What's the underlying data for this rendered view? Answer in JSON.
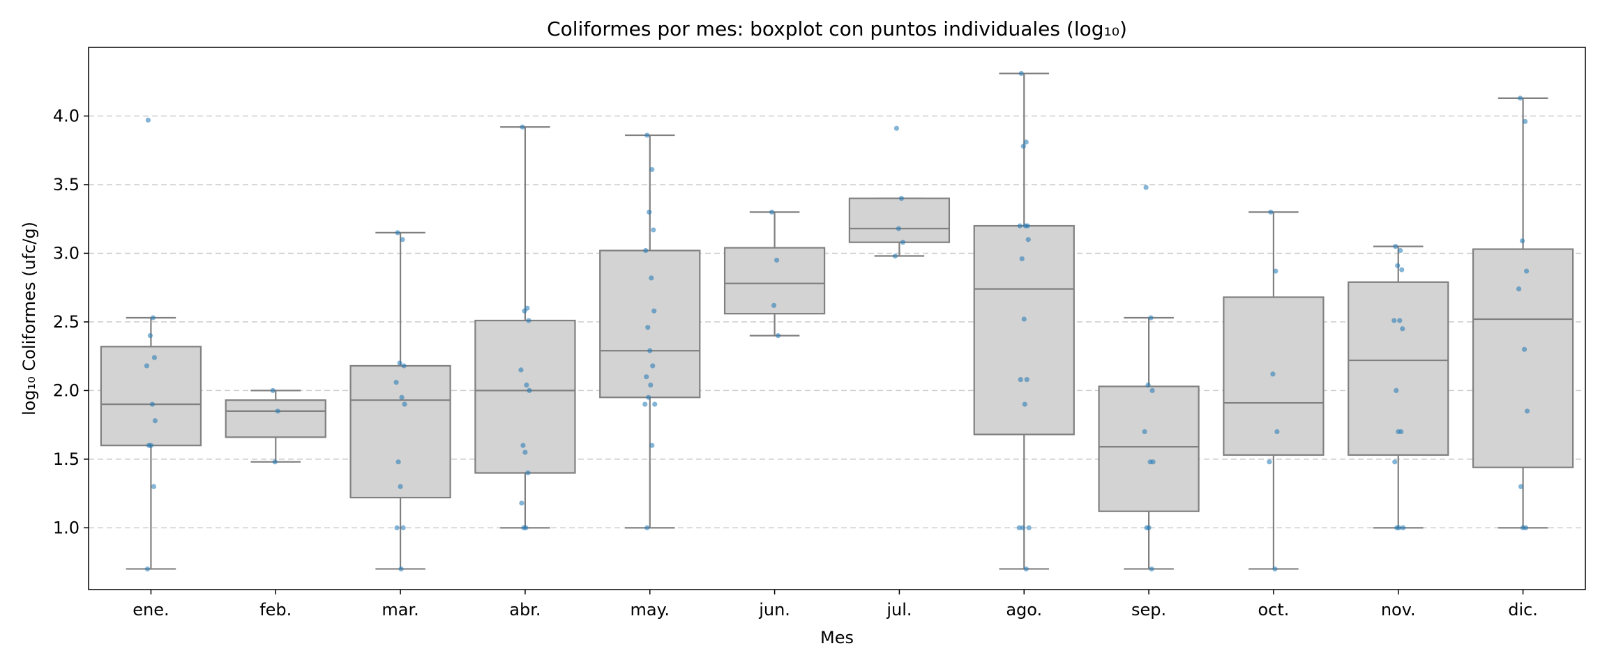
{
  "chart_data": {
    "type": "box",
    "title": "Coliformes por mes: boxplot con puntos individuales (log₁₀)",
    "xlabel": "Mes",
    "ylabel": "log₁₀ Coliformes (ufc/g)",
    "ylim": [
      0.55,
      4.5
    ],
    "yticks": [
      1.0,
      1.5,
      2.0,
      2.5,
      3.0,
      3.5,
      4.0
    ],
    "grid": "horizontal dashed",
    "colors": {
      "box_fill": "#d3d3d3",
      "box_line": "#808080",
      "points": "#1f77b4",
      "grid": "#cccccc"
    },
    "categories": [
      "ene.",
      "feb.",
      "mar.",
      "abr.",
      "may.",
      "jun.",
      "jul.",
      "ago.",
      "sep.",
      "oct.",
      "nov.",
      "dic."
    ],
    "boxes": [
      {
        "whislo": 0.7,
        "q1": 1.6,
        "med": 1.9,
        "q3": 2.32,
        "whishi": 2.53
      },
      {
        "whislo": 1.48,
        "q1": 1.66,
        "med": 1.85,
        "q3": 1.93,
        "whishi": 2.0
      },
      {
        "whislo": 0.7,
        "q1": 1.22,
        "med": 1.93,
        "q3": 2.18,
        "whishi": 3.15
      },
      {
        "whislo": 1.0,
        "q1": 1.4,
        "med": 2.0,
        "q3": 2.51,
        "whishi": 3.92
      },
      {
        "whislo": 1.0,
        "q1": 1.95,
        "med": 2.29,
        "q3": 3.02,
        "whishi": 3.86
      },
      {
        "whislo": 2.4,
        "q1": 2.56,
        "med": 2.78,
        "q3": 3.04,
        "whishi": 3.3
      },
      {
        "whislo": 2.98,
        "q1": 3.08,
        "med": 3.18,
        "q3": 3.4,
        "whishi": 3.4
      },
      {
        "whislo": 0.7,
        "q1": 1.68,
        "med": 2.74,
        "q3": 3.2,
        "whishi": 4.31
      },
      {
        "whislo": 0.7,
        "q1": 1.12,
        "med": 1.59,
        "q3": 2.03,
        "whishi": 2.53
      },
      {
        "whislo": 0.7,
        "q1": 1.53,
        "med": 1.91,
        "q3": 2.68,
        "whishi": 3.3
      },
      {
        "whislo": 1.0,
        "q1": 1.53,
        "med": 2.22,
        "q3": 2.79,
        "whishi": 3.05
      },
      {
        "whislo": 1.0,
        "q1": 1.44,
        "med": 2.52,
        "q3": 3.03,
        "whishi": 4.13
      }
    ],
    "points": [
      [
        3.97,
        2.53,
        2.4,
        2.24,
        2.18,
        1.9,
        1.78,
        1.6,
        1.6,
        1.3,
        0.7
      ],
      [
        2.0,
        1.85,
        1.48
      ],
      [
        3.15,
        3.1,
        2.2,
        2.18,
        2.06,
        1.95,
        1.9,
        1.48,
        1.3,
        1.0,
        1.0,
        0.7
      ],
      [
        3.92,
        2.6,
        2.58,
        2.51,
        2.15,
        2.04,
        2.0,
        1.6,
        1.55,
        1.4,
        1.18,
        1.0,
        1.0
      ],
      [
        3.86,
        3.61,
        3.3,
        3.17,
        3.02,
        2.82,
        2.58,
        2.46,
        2.29,
        2.18,
        2.1,
        2.04,
        1.95,
        1.9,
        1.9,
        1.6,
        1.0
      ],
      [
        3.3,
        2.95,
        2.62,
        2.4
      ],
      [
        3.91,
        3.4,
        3.18,
        3.08,
        2.98
      ],
      [
        4.31,
        3.81,
        3.78,
        3.2,
        3.2,
        3.2,
        3.1,
        2.96,
        2.52,
        2.08,
        2.08,
        1.9,
        1.0,
        1.0,
        1.0,
        0.7
      ],
      [
        3.48,
        2.53,
        2.04,
        2.0,
        1.7,
        1.48,
        1.48,
        1.0,
        1.0,
        0.7
      ],
      [
        3.3,
        2.87,
        2.12,
        1.7,
        1.48,
        0.7
      ],
      [
        3.05,
        3.02,
        2.91,
        2.88,
        2.51,
        2.51,
        2.45,
        2.0,
        1.7,
        1.7,
        1.48,
        1.0,
        1.0,
        1.0
      ],
      [
        4.13,
        3.96,
        3.09,
        2.87,
        2.74,
        2.3,
        1.85,
        1.3,
        1.0,
        1.0
      ]
    ]
  }
}
